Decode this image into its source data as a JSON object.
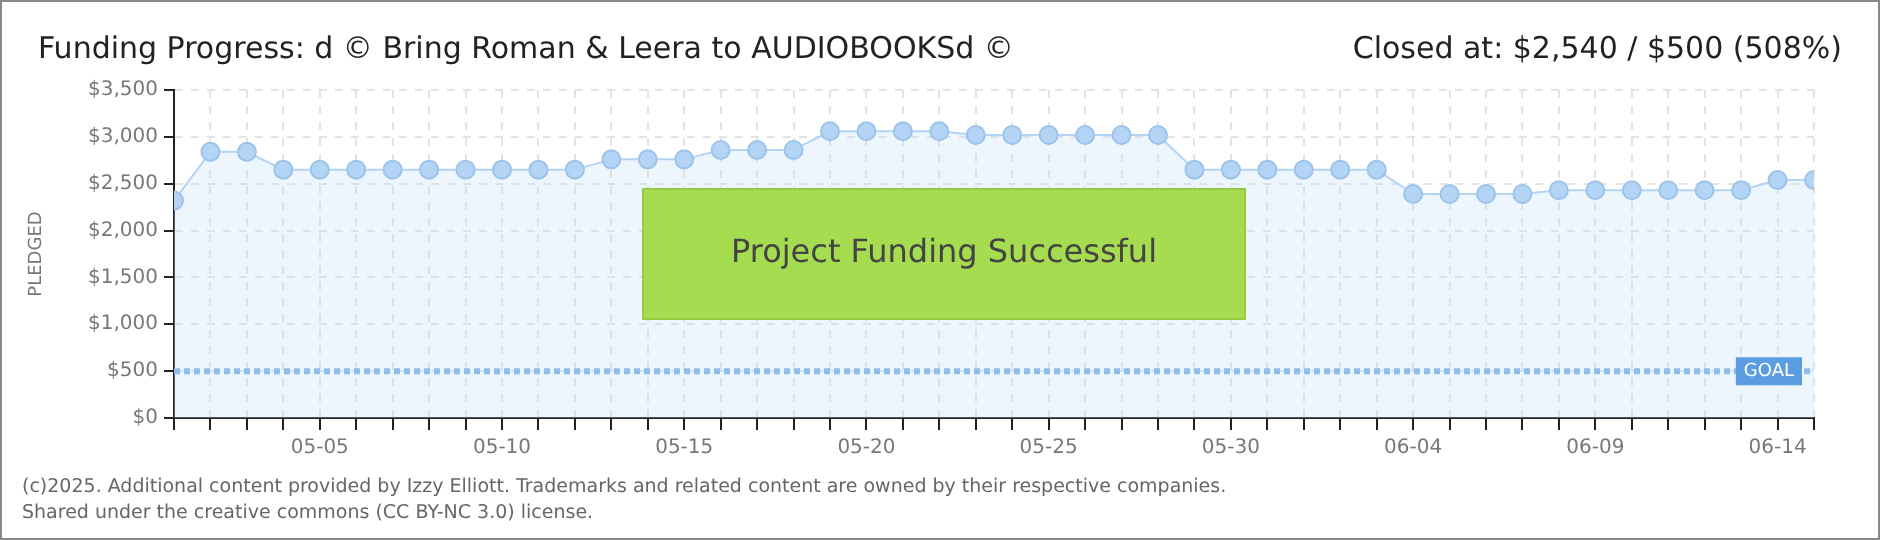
{
  "chart_data": {
    "type": "area",
    "title": "Funding Progress: d © Bring Roman & Leera to AUDIOBOOKSd ©",
    "subtitle": "Closed at: $2,540 / $500 (508%)",
    "ylabel": "PLEDGED",
    "annotations": [
      "Project Funding Successful",
      "(c)2025. Additional content provided by Izzy Elliott. Trademarks and related content are owned by their respective companies.",
      "Shared under the creative commons (CC BY-NC 3.0) license."
    ],
    "x": [
      "--05-01",
      "--05-02",
      "--05-03",
      "--05-04",
      "--05-05",
      "--05-06",
      "--05-07",
      "--05-08",
      "--05-09",
      "--05-10",
      "--05-11",
      "--05-12",
      "--05-13",
      "--05-14",
      "--05-15",
      "--05-16",
      "--05-17",
      "--05-18",
      "--05-19",
      "--05-20",
      "--05-21",
      "--05-22",
      "--05-23",
      "--05-24",
      "--05-25",
      "--05-26",
      "--05-27",
      "--05-28",
      "--05-29",
      "--05-30",
      "--05-31",
      "--06-01",
      "--06-02",
      "--06-03",
      "--06-04",
      "--06-05",
      "--06-06",
      "--06-07",
      "--06-08",
      "--06-09",
      "--06-10",
      "--06-11",
      "--06-12",
      "--06-13",
      "--06-14",
      "--06-15"
    ],
    "series": [
      {
        "color": "#b3d4f5",
        "values": [
          2320,
          2840,
          2840,
          2650,
          2650,
          2650,
          2650,
          2650,
          2650,
          2650,
          2650,
          2650,
          2760,
          2760,
          2760,
          2860,
          2860,
          2860,
          3060,
          3060,
          3060,
          3060,
          3020,
          3020,
          3020,
          3020,
          3020,
          3020,
          2650,
          2650,
          2650,
          2650,
          2650,
          2650,
          2390,
          2390,
          2390,
          2390,
          2430,
          2430,
          2430,
          2430,
          2430,
          2430,
          2540,
          2540
        ]
      }
    ],
    "xlim": [
      "--05-01",
      "--06-15"
    ],
    "xticks": [
      {
        "value": "--05-01",
        "label": null
      },
      {
        "value": "--05-02",
        "label": null
      },
      {
        "value": "--05-03",
        "label": null
      },
      {
        "value": "--05-04",
        "label": null
      },
      {
        "value": "--05-05",
        "label": "05-05"
      },
      {
        "value": "--05-06",
        "label": null
      },
      {
        "value": "--05-07",
        "label": null
      },
      {
        "value": "--05-08",
        "label": null
      },
      {
        "value": "--05-09",
        "label": null
      },
      {
        "value": "--05-10",
        "label": "05-10"
      },
      {
        "value": "--05-11",
        "label": null
      },
      {
        "value": "--05-12",
        "label": null
      },
      {
        "value": "--05-13",
        "label": null
      },
      {
        "value": "--05-14",
        "label": null
      },
      {
        "value": "--05-15",
        "label": "05-15"
      },
      {
        "value": "--05-16",
        "label": null
      },
      {
        "value": "--05-17",
        "label": null
      },
      {
        "value": "--05-18",
        "label": null
      },
      {
        "value": "--05-19",
        "label": null
      },
      {
        "value": "--05-20",
        "label": "05-20"
      },
      {
        "value": "--05-21",
        "label": null
      },
      {
        "value": "--05-22",
        "label": null
      },
      {
        "value": "--05-23",
        "label": null
      },
      {
        "value": "--05-24",
        "label": null
      },
      {
        "value": "--05-25",
        "label": "05-25"
      },
      {
        "value": "--05-26",
        "label": null
      },
      {
        "value": "--05-27",
        "label": null
      },
      {
        "value": "--05-28",
        "label": null
      },
      {
        "value": "--05-29",
        "label": null
      },
      {
        "value": "--05-30",
        "label": "05-30"
      },
      {
        "value": "--05-31",
        "label": null
      },
      {
        "value": "--06-01",
        "label": null
      },
      {
        "value": "--06-02",
        "label": null
      },
      {
        "value": "--06-03",
        "label": null
      },
      {
        "value": "--06-04",
        "label": "06-04"
      },
      {
        "value": "--06-05",
        "label": null
      },
      {
        "value": "--06-06",
        "label": null
      },
      {
        "value": "--06-07",
        "label": null
      },
      {
        "value": "--06-08",
        "label": null
      },
      {
        "value": "--06-09",
        "label": "06-09"
      },
      {
        "value": "--06-10",
        "label": null
      },
      {
        "value": "--06-11",
        "label": null
      },
      {
        "value": "--06-12",
        "label": null
      },
      {
        "value": "--06-13",
        "label": null
      },
      {
        "value": "--06-14",
        "label": "06-14"
      },
      {
        "value": "--06-15",
        "label": null
      }
    ],
    "ylim": [
      0,
      3500
    ],
    "yticks": [
      {
        "value": 0,
        "label": "$0"
      },
      {
        "value": 500,
        "label": "$500"
      },
      {
        "value": 1000,
        "label": "$1,000"
      },
      {
        "value": 1500,
        "label": "$1,500"
      },
      {
        "value": 2000,
        "label": "$2,000"
      },
      {
        "value": 2500,
        "label": "$2,500"
      },
      {
        "value": 3000,
        "label": "$3,000"
      },
      {
        "value": 3500,
        "label": "$3,500"
      }
    ],
    "ref_lines": [
      {
        "axis": "y",
        "value": 500,
        "label": "GOAL",
        "color": "#8fbdec",
        "line_style": "dotted"
      }
    ],
    "grid": true,
    "legend": false,
    "marker": "circle",
    "line_style": "solid"
  }
}
